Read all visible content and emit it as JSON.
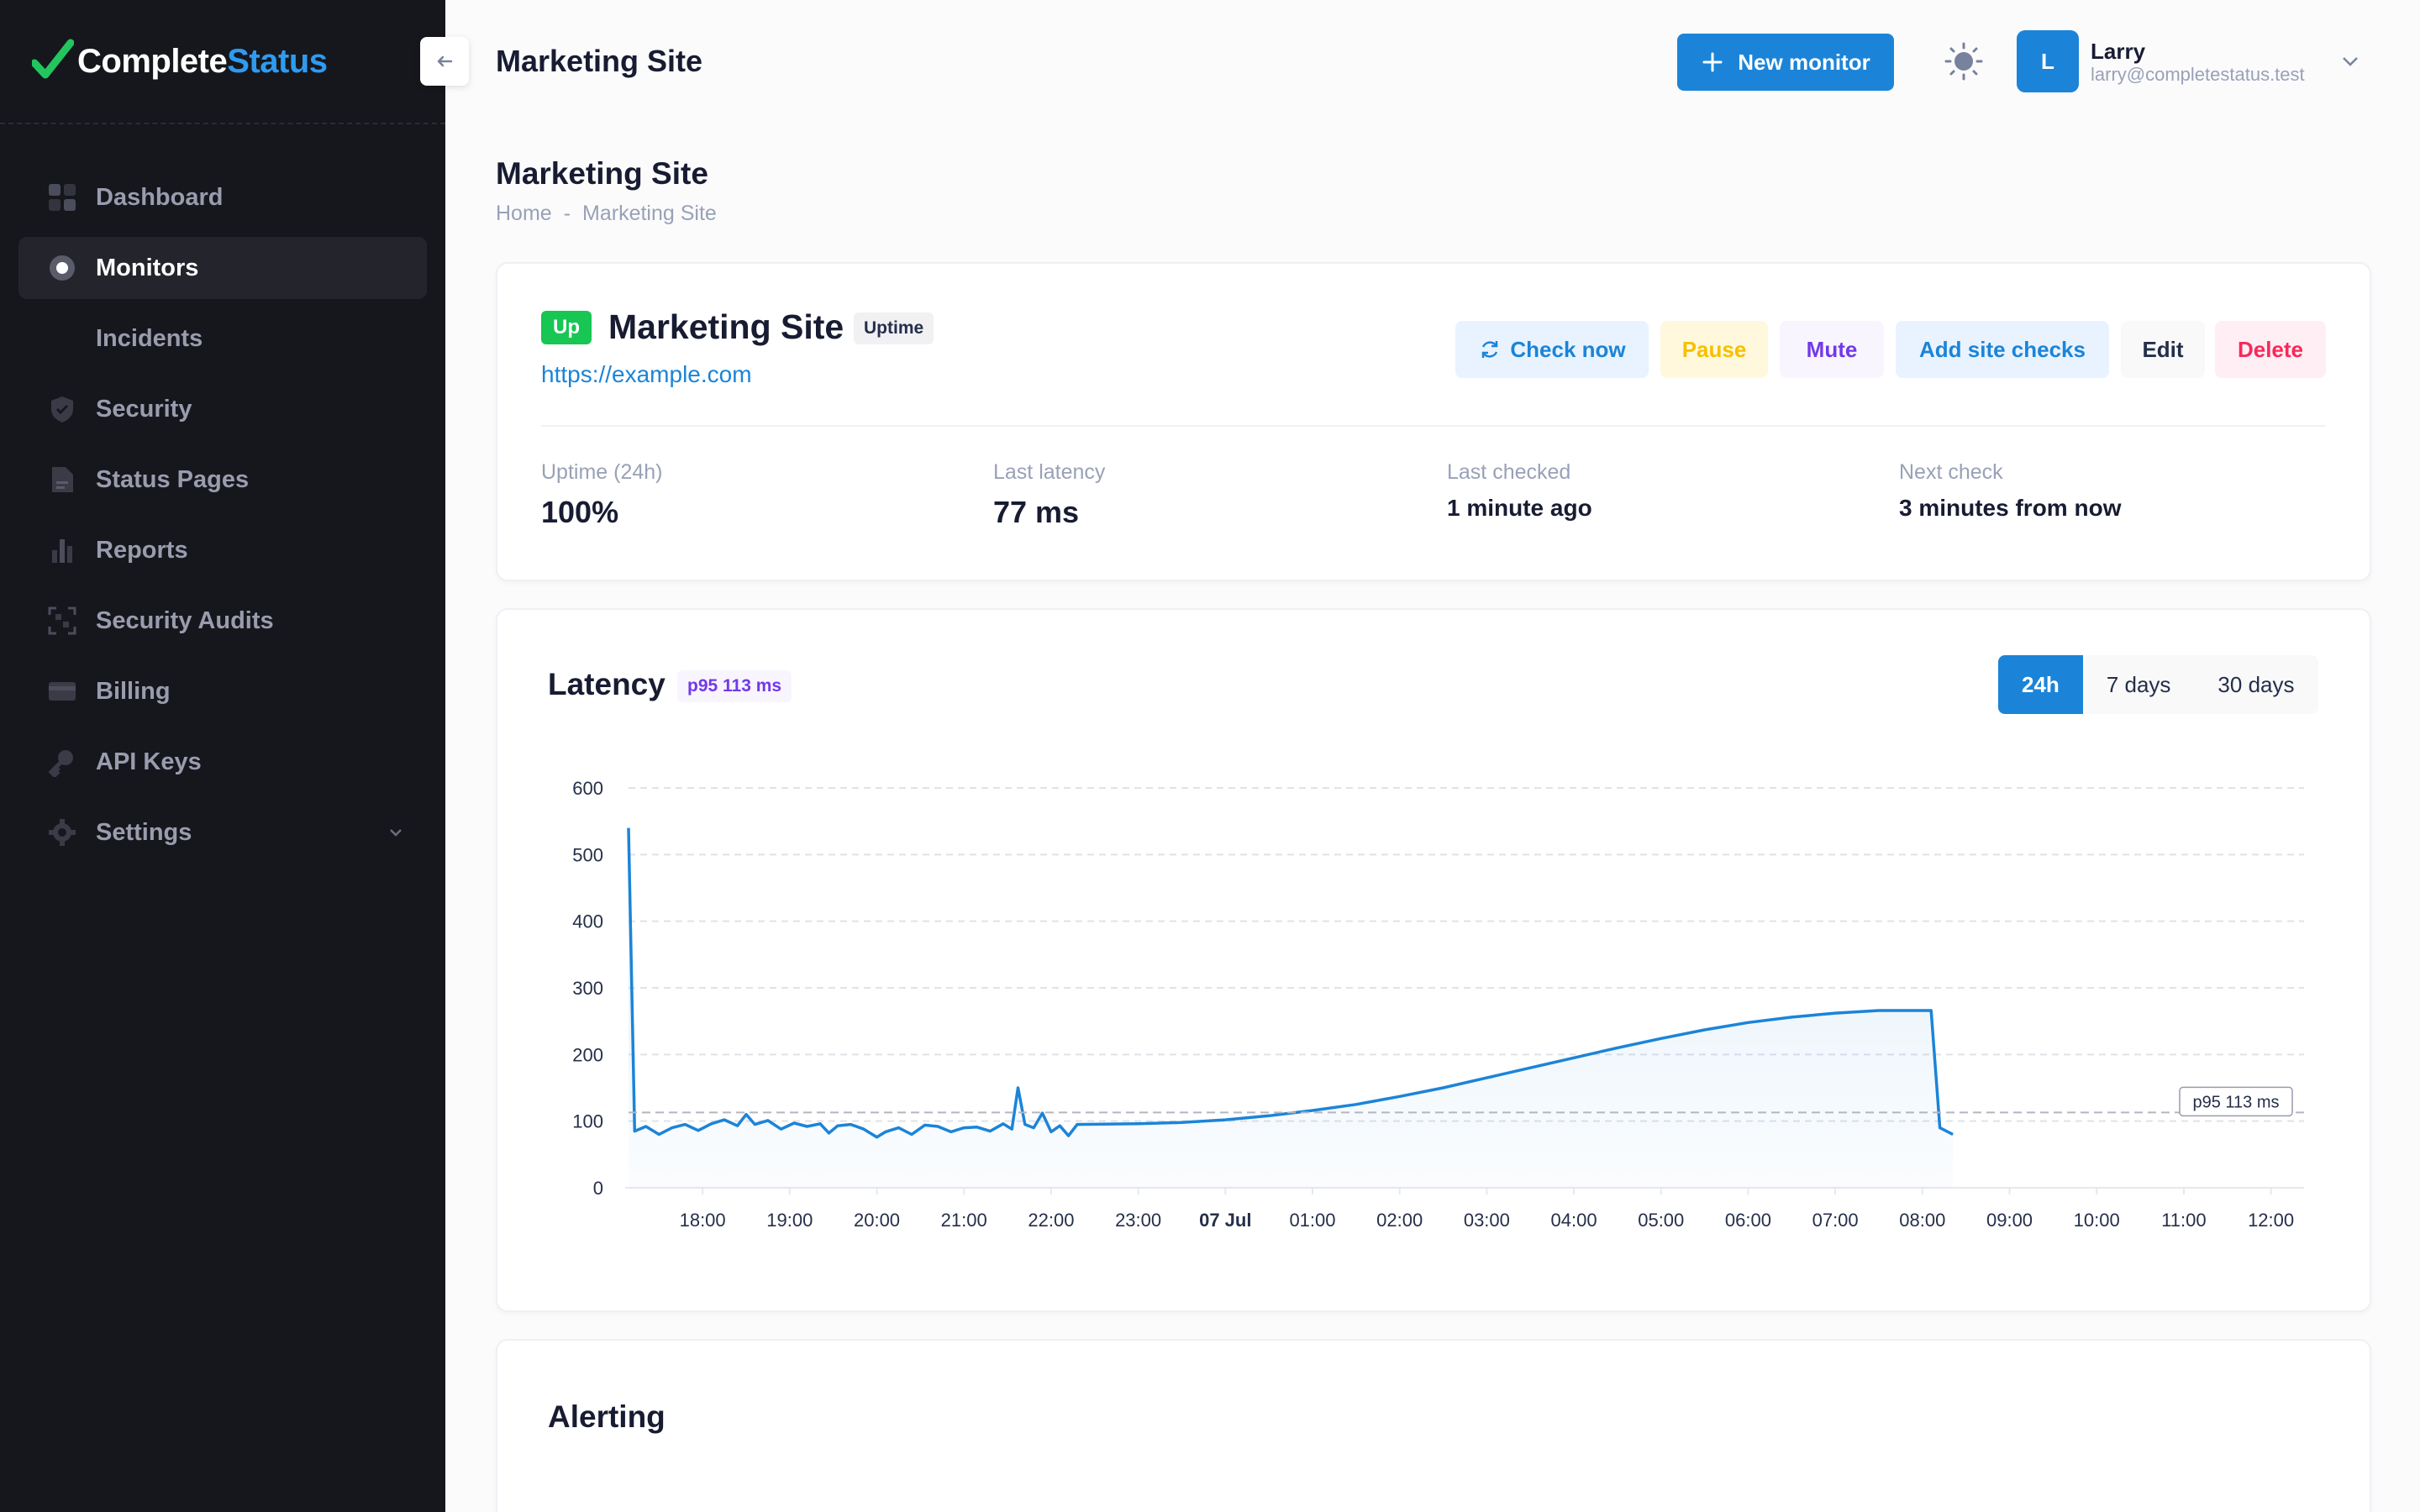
{
  "brand": {
    "name_part1": "Complete",
    "name_part2": "Status",
    "accent": "#1b84d8"
  },
  "sidebar": {
    "items": [
      {
        "label": "Dashboard",
        "icon": "dashboard-icon"
      },
      {
        "label": "Monitors",
        "icon": "monitor-icon",
        "active": true
      },
      {
        "label": "Incidents"
      },
      {
        "label": "Security",
        "icon": "shield-icon"
      },
      {
        "label": "Status Pages",
        "icon": "document-icon"
      },
      {
        "label": "Reports",
        "icon": "bar-chart-icon"
      },
      {
        "label": "Security Audits",
        "icon": "scan-icon"
      },
      {
        "label": "Billing",
        "icon": "credit-card-icon"
      },
      {
        "label": "API Keys",
        "icon": "key-icon"
      },
      {
        "label": "Settings",
        "icon": "gear-icon"
      }
    ]
  },
  "header": {
    "title": "Marketing Site",
    "new_monitor_label": "New monitor",
    "user": {
      "initial": "L",
      "name": "Larry",
      "email": "larry@completestatus.test"
    }
  },
  "page": {
    "title": "Marketing Site",
    "breadcrumb": [
      "Home",
      "Marketing Site"
    ]
  },
  "monitor": {
    "status": "Up",
    "status_color": "#17c653",
    "name": "Marketing Site",
    "type": "Uptime",
    "url": "https://example.com",
    "actions": {
      "check_now": "Check now",
      "pause": "Pause",
      "mute": "Mute",
      "add_site_checks": "Add site checks",
      "edit": "Edit",
      "delete": "Delete"
    },
    "stats": [
      {
        "label": "Uptime (24h)",
        "value": "100%"
      },
      {
        "label": "Last latency",
        "value": "77 ms"
      },
      {
        "label": "Last checked",
        "value": "1 minute ago"
      },
      {
        "label": "Next check",
        "value": "3 minutes from now"
      }
    ]
  },
  "latency": {
    "title": "Latency",
    "p95_badge": "p95 113 ms",
    "ranges": [
      "24h",
      "7 days",
      "30 days"
    ],
    "active_range": "24h"
  },
  "chart_data": {
    "type": "area",
    "title": "Latency",
    "y_ticks": [
      0,
      100,
      200,
      300,
      400,
      500,
      600
    ],
    "ylim": [
      0,
      600
    ],
    "x_ticks": [
      "18:00",
      "19:00",
      "20:00",
      "21:00",
      "22:00",
      "23:00",
      "07 Jul",
      "01:00",
      "02:00",
      "03:00",
      "04:00",
      "05:00",
      "06:00",
      "07:00",
      "08:00",
      "09:00",
      "10:00",
      "11:00",
      "12:00"
    ],
    "xlim": [
      17.15,
      36.38
    ],
    "grid": true,
    "reference_line": {
      "label": "p95 113 ms",
      "value": 113
    },
    "series": [
      {
        "color": "#1b84d8",
        "points": [
          [
            17.15,
            540
          ],
          [
            17.22,
            85
          ],
          [
            17.35,
            92
          ],
          [
            17.5,
            80
          ],
          [
            17.65,
            90
          ],
          [
            17.8,
            95
          ],
          [
            17.95,
            86
          ],
          [
            18.1,
            96
          ],
          [
            18.25,
            102
          ],
          [
            18.4,
            93
          ],
          [
            18.5,
            110
          ],
          [
            18.6,
            95
          ],
          [
            18.75,
            101
          ],
          [
            18.9,
            88
          ],
          [
            19.05,
            97
          ],
          [
            19.2,
            92
          ],
          [
            19.35,
            96
          ],
          [
            19.45,
            82
          ],
          [
            19.55,
            93
          ],
          [
            19.7,
            95
          ],
          [
            19.85,
            88
          ],
          [
            20.0,
            76
          ],
          [
            20.1,
            84
          ],
          [
            20.25,
            90
          ],
          [
            20.4,
            80
          ],
          [
            20.55,
            94
          ],
          [
            20.7,
            92
          ],
          [
            20.85,
            84
          ],
          [
            21.0,
            90
          ],
          [
            21.15,
            91
          ],
          [
            21.3,
            85
          ],
          [
            21.45,
            96
          ],
          [
            21.55,
            88
          ],
          [
            21.62,
            150
          ],
          [
            21.7,
            95
          ],
          [
            21.8,
            90
          ],
          [
            21.9,
            112
          ],
          [
            22.0,
            84
          ],
          [
            22.1,
            93
          ],
          [
            22.2,
            78
          ],
          [
            22.3,
            95
          ],
          [
            23.0,
            96
          ],
          [
            23.5,
            98
          ],
          [
            24.0,
            102
          ],
          [
            24.5,
            108
          ],
          [
            25.0,
            116
          ],
          [
            25.5,
            125
          ],
          [
            26.0,
            137
          ],
          [
            26.5,
            150
          ],
          [
            27.0,
            165
          ],
          [
            27.5,
            180
          ],
          [
            28.0,
            195
          ],
          [
            28.5,
            210
          ],
          [
            29.0,
            224
          ],
          [
            29.5,
            237
          ],
          [
            30.0,
            248
          ],
          [
            30.5,
            256
          ],
          [
            31.0,
            262
          ],
          [
            31.5,
            266
          ],
          [
            32.1,
            266
          ],
          [
            32.2,
            90
          ],
          [
            32.35,
            80
          ]
        ]
      }
    ]
  },
  "alerting": {
    "title": "Alerting"
  }
}
